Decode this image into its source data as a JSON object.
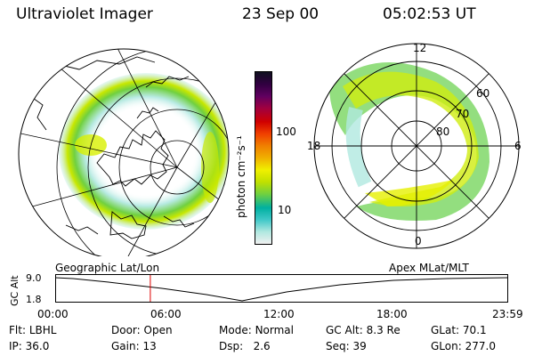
{
  "header": {
    "instrument": "Ultraviolet Imager",
    "date": "23 Sep 00",
    "time": "05:02:53 UT"
  },
  "colorbar": {
    "unit_label": "photon cm⁻²s⁻¹",
    "ticks": [
      "100",
      "10"
    ],
    "colors": [
      "#f0f0f0",
      "#b0e8e0",
      "#40c8c8",
      "#00b0a0",
      "#70d040",
      "#c0e000",
      "#f0f000",
      "#f0b000",
      "#f08000",
      "#f04000",
      "#d00000",
      "#a00040",
      "#600060",
      "#300040",
      "#101020"
    ]
  },
  "left_map": {
    "label": "Geographic Lat/Lon"
  },
  "right_map": {
    "label": "Apex MLat/MLT",
    "mlt_labels": {
      "top": "12",
      "left": "18",
      "right": "6",
      "bottom": "0"
    },
    "lat_labels": [
      "60",
      "70",
      "80"
    ]
  },
  "altitude_plot": {
    "ylabel": "GC Alt",
    "yticks": [
      "9.0",
      "1.8"
    ],
    "xticks": [
      "00:00",
      "06:00",
      "12:00",
      "18:00",
      "23:59"
    ],
    "marker_time": "05:02:53"
  },
  "footer": {
    "row1": [
      {
        "key": "Flt:",
        "val": "LBHL"
      },
      {
        "key": "Door:",
        "val": "Open"
      },
      {
        "key": "Mode:",
        "val": "Normal"
      },
      {
        "key": "GC Alt:",
        "val": "8.3 Re"
      },
      {
        "key": "GLat:",
        "val": "70.1"
      }
    ],
    "row2": [
      {
        "key": "IP:",
        "val": "36.0"
      },
      {
        "key": "Gain:",
        "val": "13"
      },
      {
        "key": "Dsp:",
        "val": "2.6"
      },
      {
        "key": "Seq:",
        "val": "39"
      },
      {
        "key": "GLon:",
        "val": "277.0"
      }
    ]
  }
}
